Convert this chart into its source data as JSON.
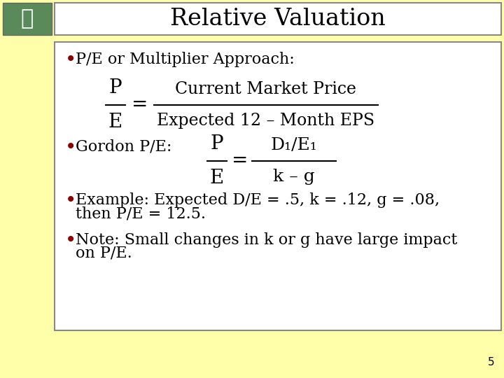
{
  "title": "Relative Valuation",
  "background_color": "#FFFFAA",
  "title_box_color": "#FFFFFF",
  "content_box_color": "#FFFFFF",
  "title_color": "#000000",
  "bullet_color": "#8B0000",
  "text_color": "#000000",
  "page_number": "5",
  "bullet1": "P/E or Multiplier Approach:",
  "formula1_rhs_num": "Current Market Price",
  "formula1_rhs_den": "Expected 12 – Month EPS",
  "bullet2": "Gordon P/E:",
  "formula2_rhs_num": "D₁/E₁",
  "formula2_rhs_den": "k – g",
  "bullet3_line1": "Example: Expected D/E = .5, k = .12, g = .08,",
  "bullet3_line2": "then P/E = 12.5.",
  "bullet4_line1": "Note: Small changes in k or g have large impact",
  "bullet4_line2": "on P/E.",
  "title_fontsize": 24,
  "bullet_fontsize": 16,
  "formula_fontsize": 17,
  "formula_large_fontsize": 20
}
